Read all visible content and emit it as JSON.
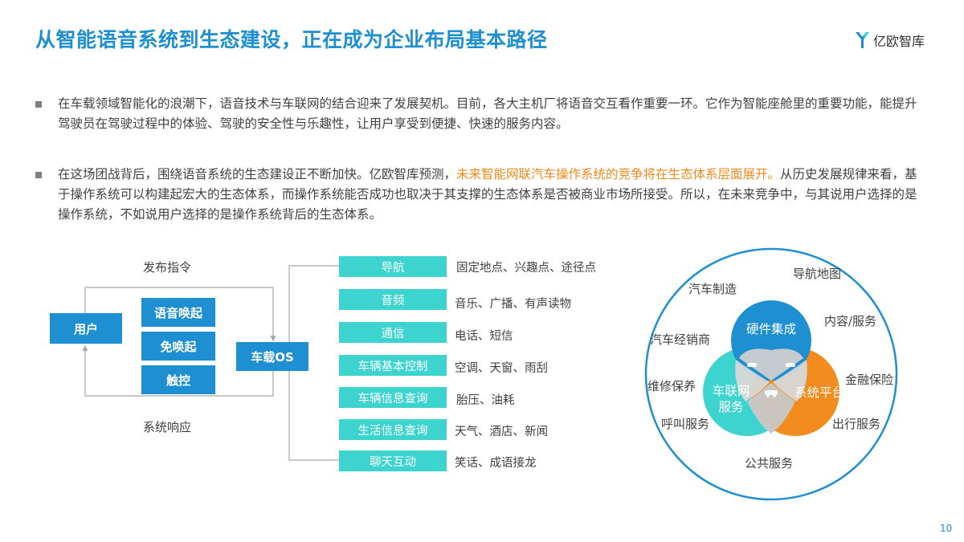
{
  "header": {
    "title": "从智能语音系统到生态建设，正在成为企业布局基本路径",
    "logo_text": "亿欧智库"
  },
  "paragraphs": {
    "p1": "在车载领域智能化的浪潮下，语音技术与车联网的结合迎来了发展契机。目前，各大主机厂将语音交互看作重要一环。它作为智能座舱里的重要功能，能提升驾驶员在驾驶过程中的体验、驾驶的安全性与乐趣性，让用户享受到便捷、快速的服务内容。",
    "p2_before": "在这场团战背后，围绕语音系统的生态建设正不断加快。亿欧智库预测，",
    "p2_highlight": "未来智能网联汽车操作系统的竞争将在生态体系层面展开。",
    "p2_after": "从历史发展规律来看，基于操作系统可以构建起宏大的生态体系，而操作系统能否成功也取决于其支撑的生态体系是否被商业市场所接受。所以，在未来竞争中，与其说用户选择的是操作系统，不如说用户选择的是操作系统背后的生态体系。"
  },
  "flow": {
    "top_label": "发布指令",
    "bottom_label": "系统响应",
    "user": "用户",
    "inputs": [
      "语音唤起",
      "免唤起",
      "触控"
    ],
    "os": "车载OS",
    "functions": [
      {
        "name": "导航",
        "desc": "固定地点、兴趣点、途径点"
      },
      {
        "name": "音频",
        "desc": "音乐、广播、有声读物"
      },
      {
        "name": "通信",
        "desc": "电话、短信"
      },
      {
        "name": "车辆基本控制",
        "desc": "空调、天窗、雨刮"
      },
      {
        "name": "车辆信息查询",
        "desc": "胎压、油耗"
      },
      {
        "name": "生活信息查询",
        "desc": "天气、酒店、新闻"
      },
      {
        "name": "聊天互动",
        "desc": "笑话、成语接龙"
      }
    ]
  },
  "ecosystem": {
    "core": {
      "hardware": "硬件集成",
      "iov": "车联网\n服务",
      "platform": "系统平台"
    },
    "items": [
      "汽车制造",
      "导航地图",
      "内容/服务",
      "汽车经销商",
      "维修保养",
      "金融保险",
      "呼叫服务",
      "出行服务",
      "公共服务"
    ]
  },
  "page_number": "10",
  "colors": {
    "primary_blue": "#1e8fd0",
    "teal": "#3dd4cf",
    "orange": "#f28c1f",
    "highlight": "#ef8a1c"
  }
}
